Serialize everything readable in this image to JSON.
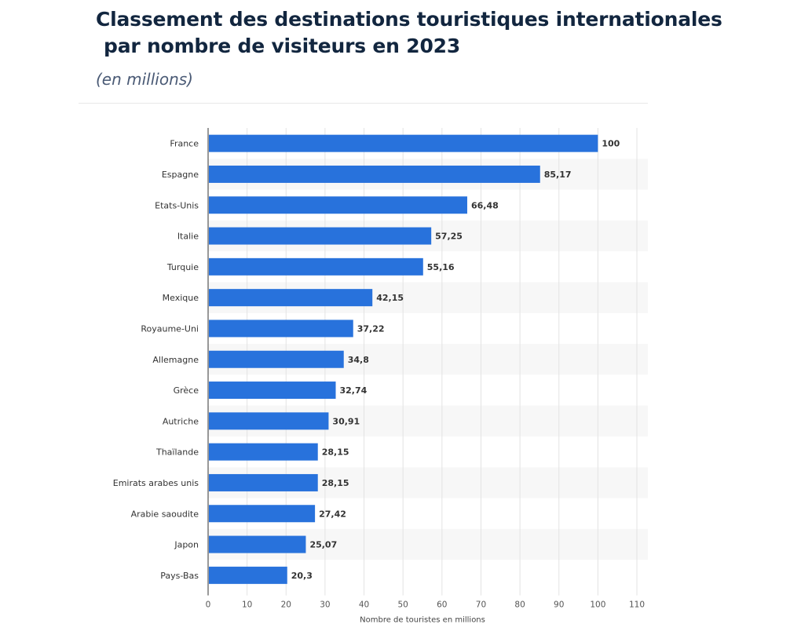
{
  "header": {
    "title_line1": "Classement des destinations touristiques internationales",
    "title_line2": "par nombre de visiteurs en 2023",
    "subtitle": "(en millions)"
  },
  "chart_data": {
    "type": "bar",
    "orientation": "horizontal",
    "categories": [
      "France",
      "Espagne",
      "Etats-Unis",
      "Italie",
      "Turquie",
      "Mexique",
      "Royaume-Uni",
      "Allemagne",
      "Grèce",
      "Autriche",
      "Thaïlande",
      "Emirats arabes unis",
      "Arabie saoudite",
      "Japon",
      "Pays-Bas"
    ],
    "values": [
      100,
      85.17,
      66.48,
      57.25,
      55.16,
      42.15,
      37.22,
      34.8,
      32.74,
      30.91,
      28.15,
      28.15,
      27.42,
      25.07,
      20.3
    ],
    "value_labels": [
      "100",
      "85,17",
      "66,48",
      "57,25",
      "55,16",
      "42,15",
      "37,22",
      "34,8",
      "32,74",
      "30,91",
      "28,15",
      "28,15",
      "27,42",
      "25,07",
      "20,3"
    ],
    "xlim": [
      0,
      110
    ],
    "xticks": [
      0,
      10,
      20,
      30,
      40,
      50,
      60,
      70,
      80,
      90,
      100,
      110
    ],
    "xlabel": "Nombre de touristes en millions",
    "ylabel": "",
    "grid": "vertical",
    "bar_color": "#2872dc",
    "band_color": "#f7f7f7"
  }
}
